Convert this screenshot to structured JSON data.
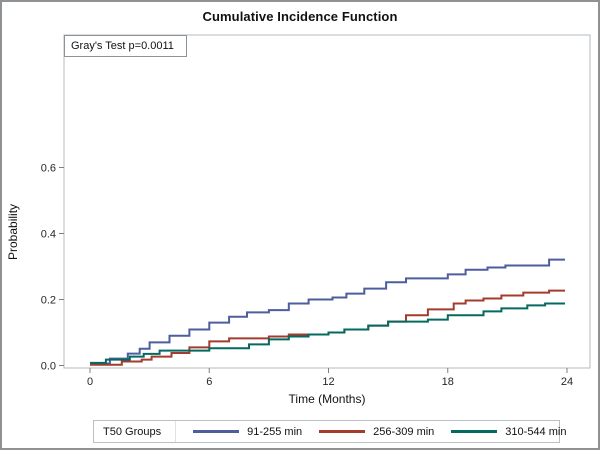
{
  "chart_data": {
    "type": "line",
    "subtype": "step",
    "title": "Cumulative Incidence Function",
    "annotation": "Gray's Test p=0.0011",
    "x_axis": {
      "label": "Time (Months)",
      "ticks": [
        0,
        6,
        12,
        18,
        24
      ],
      "range": [
        0,
        24
      ]
    },
    "y_axis": {
      "label": "Probability",
      "ticks": [
        {
          "label": "0.0",
          "value": 0.0
        },
        {
          "label": "0.2",
          "value": 0.2
        },
        {
          "label": "0.4",
          "value": 0.4
        },
        {
          "label": "0.6",
          "value": 0.6
        }
      ],
      "range": [
        0,
        1.0
      ]
    },
    "grid": false,
    "legend": {
      "title": "T50 Groups",
      "position": "bottom"
    },
    "series": [
      {
        "name": "91-255 min",
        "color": "#4d5d9e",
        "end": 23.9,
        "points": [
          [
            0,
            0.006
          ],
          [
            1,
            0.021
          ],
          [
            1.9,
            0.036
          ],
          [
            2.5,
            0.051
          ],
          [
            3,
            0.07
          ],
          [
            4,
            0.09
          ],
          [
            5,
            0.109
          ],
          [
            6,
            0.13
          ],
          [
            7,
            0.148
          ],
          [
            7.9,
            0.161
          ],
          [
            9,
            0.168
          ],
          [
            10,
            0.188
          ],
          [
            11,
            0.2
          ],
          [
            12.2,
            0.206
          ],
          [
            12.9,
            0.218
          ],
          [
            13.8,
            0.233
          ],
          [
            14.9,
            0.252
          ],
          [
            15.9,
            0.264
          ],
          [
            18,
            0.276
          ],
          [
            18.9,
            0.29
          ],
          [
            20,
            0.297
          ],
          [
            20.9,
            0.303
          ],
          [
            23.1,
            0.321
          ]
        ]
      },
      {
        "name": "256-309 min",
        "color": "#a33b2e",
        "end": 23.9,
        "points": [
          [
            0,
            0.002
          ],
          [
            1.6,
            0.012
          ],
          [
            2.6,
            0.018
          ],
          [
            3.1,
            0.027
          ],
          [
            4.1,
            0.038
          ],
          [
            5,
            0.055
          ],
          [
            6,
            0.073
          ],
          [
            7,
            0.082
          ],
          [
            9,
            0.088
          ],
          [
            10,
            0.094
          ],
          [
            12,
            0.1
          ],
          [
            12.8,
            0.109
          ],
          [
            14,
            0.121
          ],
          [
            15,
            0.133
          ],
          [
            15.9,
            0.152
          ],
          [
            17,
            0.17
          ],
          [
            18.3,
            0.188
          ],
          [
            18.9,
            0.197
          ],
          [
            19.8,
            0.203
          ],
          [
            20.7,
            0.212
          ],
          [
            21.8,
            0.221
          ],
          [
            23.1,
            0.227
          ]
        ]
      },
      {
        "name": "310-544 min",
        "color": "#046a5f",
        "end": 23.9,
        "points": [
          [
            0,
            0.008
          ],
          [
            0.8,
            0.018
          ],
          [
            2,
            0.027
          ],
          [
            2.7,
            0.035
          ],
          [
            3.5,
            0.045
          ],
          [
            6,
            0.052
          ],
          [
            8,
            0.064
          ],
          [
            9,
            0.079
          ],
          [
            10,
            0.088
          ],
          [
            11,
            0.094
          ],
          [
            12,
            0.1
          ],
          [
            12.8,
            0.109
          ],
          [
            14,
            0.121
          ],
          [
            15,
            0.133
          ],
          [
            17,
            0.139
          ],
          [
            18,
            0.152
          ],
          [
            19.8,
            0.164
          ],
          [
            20.7,
            0.173
          ],
          [
            22,
            0.182
          ],
          [
            22.9,
            0.188
          ]
        ]
      }
    ]
  }
}
